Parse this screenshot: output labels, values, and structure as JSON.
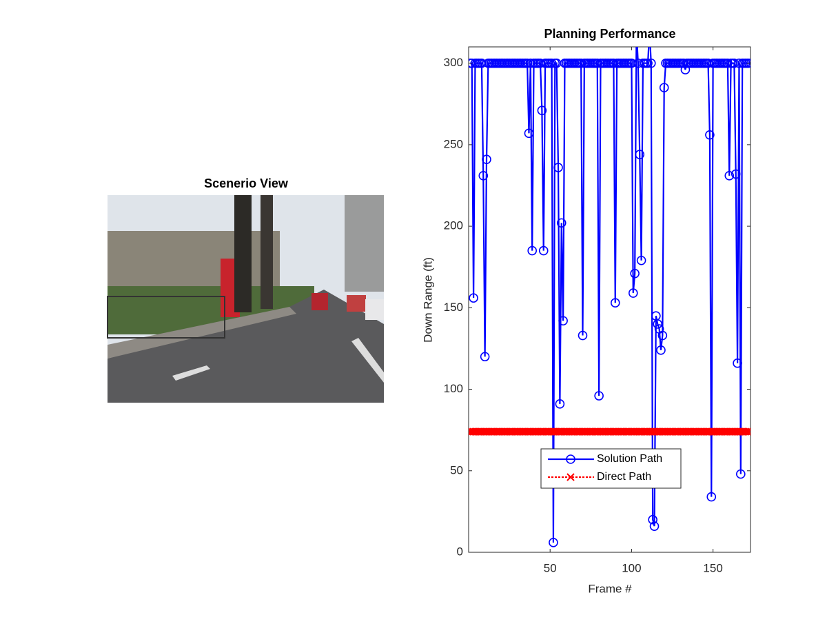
{
  "image_panel": {
    "title": "Scenerio View"
  },
  "chart_data": {
    "type": "line",
    "title": "Planning Performance",
    "x_label": "Frame #",
    "y_label": "Down Range (ft)",
    "x": [
      1,
      2,
      3,
      4,
      5,
      6,
      7,
      8,
      9,
      10,
      11,
      12,
      13,
      14,
      15,
      16,
      17,
      18,
      19,
      20,
      21,
      22,
      23,
      24,
      25,
      26,
      27,
      28,
      29,
      30,
      31,
      32,
      33,
      34,
      35,
      36,
      37,
      38,
      39,
      40,
      41,
      42,
      43,
      44,
      45,
      46,
      47,
      48,
      49,
      50,
      51,
      52,
      53,
      54,
      55,
      56,
      57,
      58,
      59,
      60,
      61,
      62,
      63,
      64,
      65,
      66,
      67,
      68,
      69,
      70,
      71,
      72,
      73,
      74,
      75,
      76,
      77,
      78,
      79,
      80,
      81,
      82,
      83,
      84,
      85,
      86,
      87,
      88,
      89,
      90,
      91,
      92,
      93,
      94,
      95,
      96,
      97,
      98,
      99,
      100,
      101,
      102,
      103,
      104,
      105,
      106,
      107,
      108,
      109,
      110,
      111,
      112,
      113,
      114,
      115,
      116,
      117,
      118,
      119,
      120,
      121,
      122,
      123,
      124,
      125,
      126,
      127,
      128,
      129,
      130,
      131,
      132,
      133,
      134,
      135,
      136,
      137,
      138,
      139,
      140,
      141,
      142,
      143,
      144,
      145,
      146,
      147,
      148,
      149,
      150,
      151,
      152,
      153,
      154,
      155,
      156,
      157,
      158,
      159,
      160,
      161,
      162,
      163,
      164,
      165,
      166,
      167,
      168,
      169,
      170,
      171,
      172
    ],
    "series": [
      {
        "name": "Solution Path",
        "color": "#0000ff",
        "marker": "circle",
        "line_style": "solid",
        "values": [
          300,
          300,
          156,
          300,
          300,
          300,
          300,
          300,
          231,
          120,
          241,
          300,
          300,
          300,
          300,
          300,
          300,
          300,
          300,
          300,
          300,
          300,
          300,
          300,
          300,
          300,
          300,
          300,
          300,
          300,
          300,
          300,
          300,
          300,
          300,
          300,
          257,
          300,
          185,
          300,
          300,
          300,
          300,
          300,
          271,
          185,
          300,
          300,
          300,
          300,
          300,
          6,
          300,
          300,
          236,
          91,
          202,
          142,
          300,
          300,
          300,
          300,
          300,
          300,
          300,
          300,
          300,
          300,
          300,
          133,
          300,
          300,
          300,
          300,
          300,
          300,
          300,
          300,
          300,
          96,
          300,
          300,
          300,
          300,
          300,
          300,
          300,
          300,
          300,
          153,
          300,
          300,
          300,
          300,
          300,
          300,
          300,
          300,
          300,
          300,
          159,
          171,
          320,
          300,
          244,
          179,
          300,
          300,
          300,
          300,
          320,
          300,
          20,
          16,
          145,
          140,
          137,
          124,
          133,
          285,
          300,
          300,
          300,
          300,
          300,
          300,
          300,
          300,
          300,
          300,
          300,
          300,
          296,
          300,
          300,
          300,
          300,
          300,
          300,
          300,
          300,
          300,
          300,
          300,
          300,
          300,
          300,
          256,
          34,
          300,
          300,
          300,
          300,
          300,
          300,
          300,
          300,
          300,
          300,
          231,
          300,
          300,
          300,
          232,
          116,
          300,
          48,
          300,
          300,
          300,
          300,
          300
        ]
      },
      {
        "name": "Direct Path",
        "color": "#ff0000",
        "marker": "x",
        "line_style": "dotted",
        "values": [
          74,
          74,
          74,
          74,
          74,
          74,
          74,
          74,
          74,
          74,
          74,
          74,
          74,
          74,
          74,
          74,
          74,
          74,
          74,
          74,
          74,
          74,
          74,
          74,
          74,
          74,
          74,
          74,
          74,
          74,
          74,
          74,
          74,
          74,
          74,
          74,
          74,
          74,
          74,
          74,
          74,
          74,
          74,
          74,
          74,
          74,
          74,
          74,
          74,
          74,
          74,
          74,
          74,
          74,
          74,
          74,
          74,
          74,
          74,
          74,
          74,
          74,
          74,
          74,
          74,
          74,
          74,
          74,
          74,
          74,
          74,
          74,
          74,
          74,
          74,
          74,
          74,
          74,
          74,
          74,
          74,
          74,
          74,
          74,
          74,
          74,
          74,
          74,
          74,
          74,
          74,
          74,
          74,
          74,
          74,
          74,
          74,
          74,
          74,
          74,
          74,
          74,
          74,
          74,
          74,
          74,
          74,
          74,
          74,
          74,
          74,
          74,
          74,
          74,
          74,
          74,
          74,
          74,
          74,
          74,
          74,
          74,
          74,
          74,
          74,
          74,
          74,
          74,
          74,
          74,
          74,
          74,
          74,
          74,
          74,
          74,
          74,
          74,
          74,
          74,
          74,
          74,
          74,
          74,
          74,
          74,
          74,
          74,
          74,
          74,
          74,
          74,
          74,
          74,
          74,
          74,
          74,
          74,
          74,
          74,
          74,
          74,
          74,
          74,
          74,
          74,
          74,
          74,
          74,
          74,
          74,
          74
        ]
      }
    ],
    "xlim": [
      0,
      173
    ],
    "ylim": [
      0,
      310
    ],
    "xticks": [
      50,
      100,
      150
    ],
    "yticks": [
      0,
      50,
      100,
      150,
      200,
      250,
      300
    ],
    "grid": false,
    "legend_position": "bottom"
  }
}
